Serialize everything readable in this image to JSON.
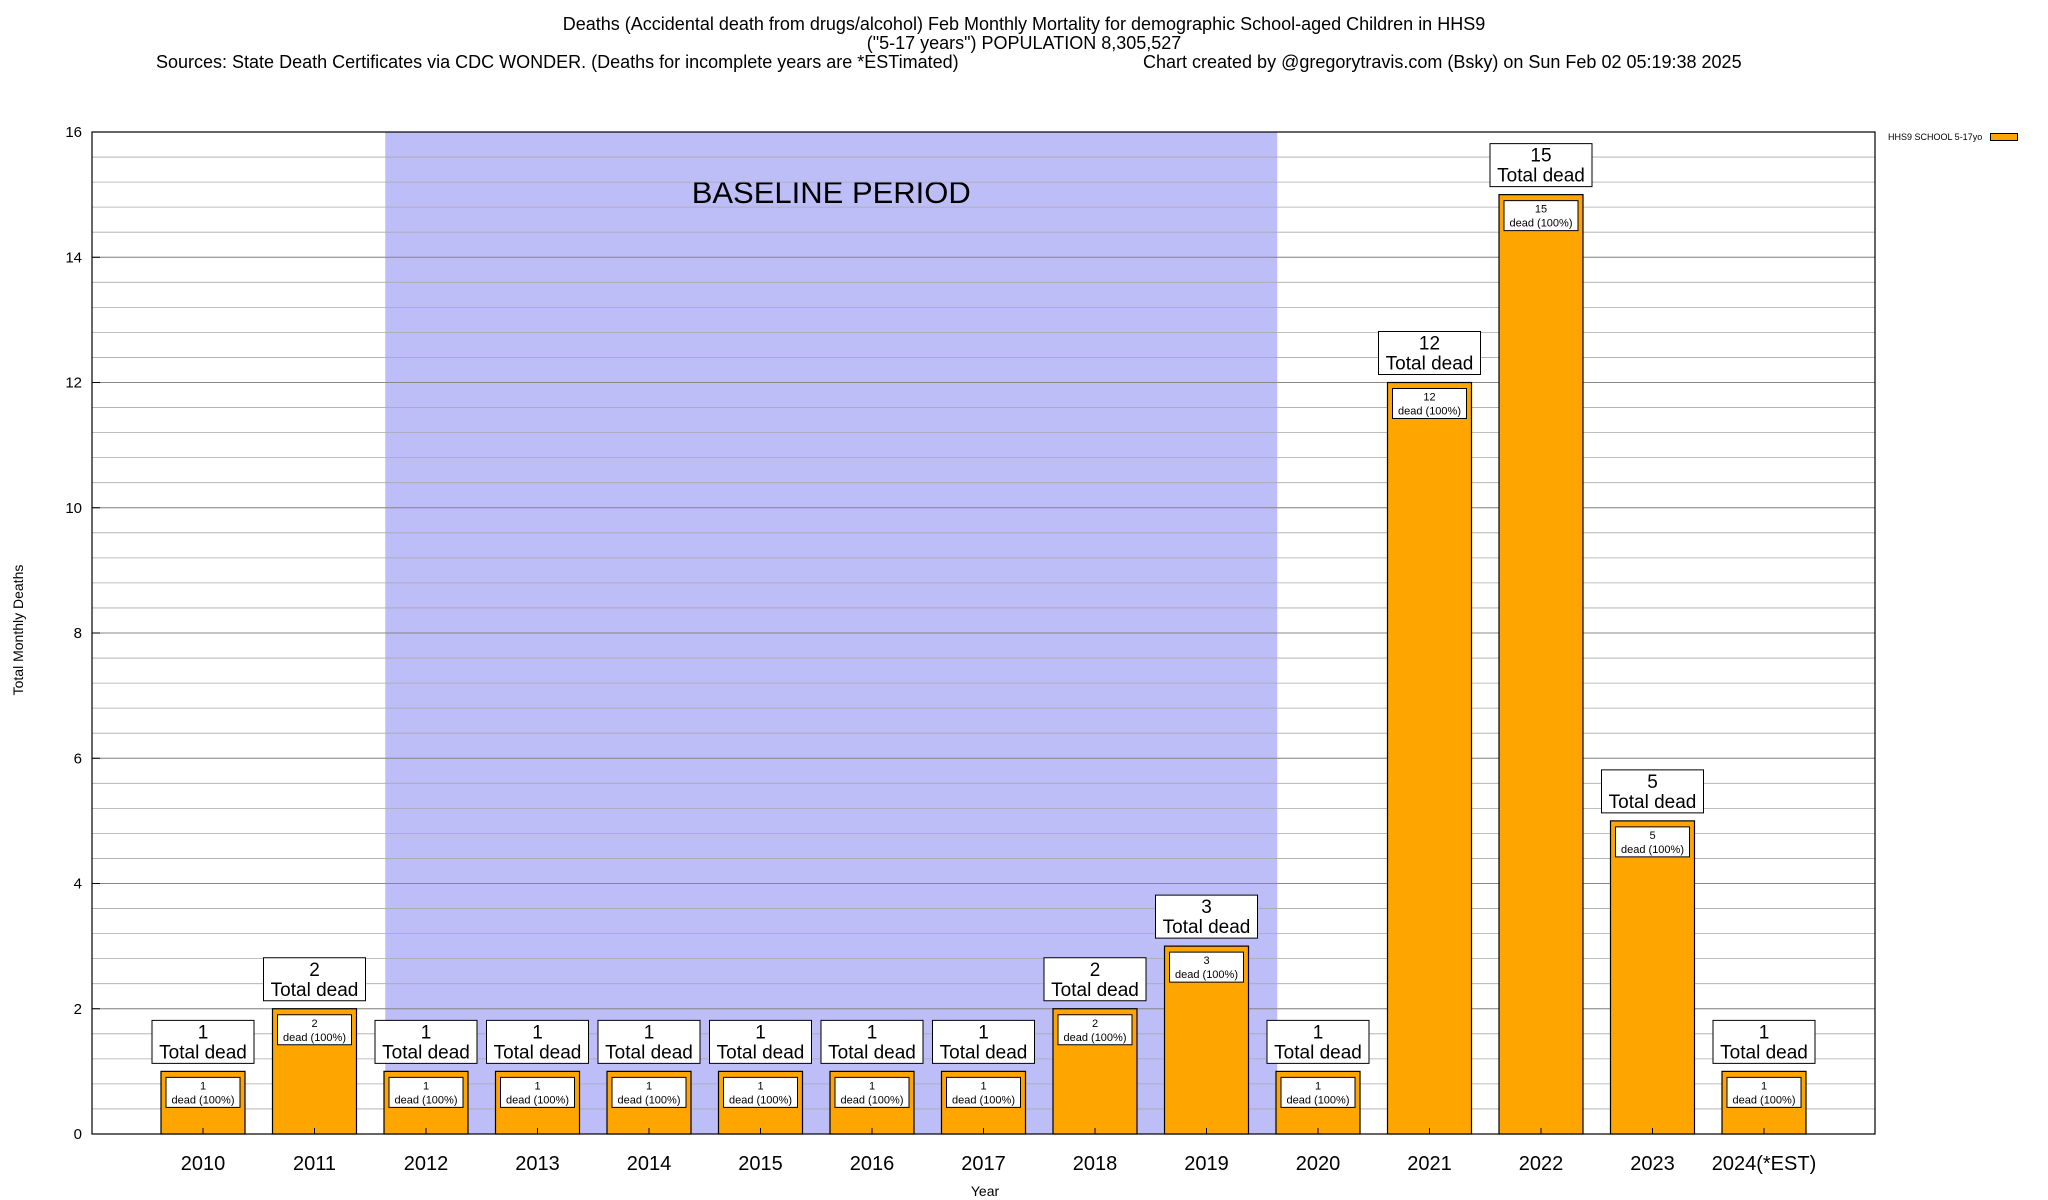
{
  "header": {
    "title_line1": "Deaths (Accidental death from drugs/alcohol) Feb Monthly Mortality for demographic School-aged Children in HHS9",
    "title_line2": "(\"5-17 years\") POPULATION 8,305,527",
    "sources": "Sources: State Death Certificates via CDC WONDER. (Deaths for incomplete years are *ESTimated)",
    "credit": "Chart created by @gregorytravis.com (Bsky) on Sun Feb 02 05:19:38 2025"
  },
  "chart_data": {
    "type": "bar",
    "title": "Deaths (Accidental death from drugs/alcohol) Feb Monthly Mortality for demographic School-aged Children in HHS9",
    "xlabel": "Year",
    "ylabel": "Total Monthly Deaths",
    "ylim": [
      0,
      16
    ],
    "yticks": [
      0,
      2,
      4,
      6,
      8,
      10,
      12,
      14,
      16
    ],
    "grid": true,
    "legend_position": "top-right",
    "categories": [
      "2010",
      "2011",
      "2012",
      "2013",
      "2014",
      "2015",
      "2016",
      "2017",
      "2018",
      "2019",
      "2020",
      "2021",
      "2022",
      "2023",
      "2024(*EST)"
    ],
    "series": [
      {
        "name": "HHS9 SCHOOL 5-17yo",
        "color": "#FFA500",
        "values": [
          1,
          2,
          1,
          1,
          1,
          1,
          1,
          1,
          2,
          3,
          1,
          12,
          15,
          5,
          1
        ]
      }
    ],
    "bar_labels": {
      "total_suffix": "Total dead",
      "inner_suffix": "dead (100%)"
    },
    "annotations": [
      {
        "text": "BASELINE PERIOD",
        "x_from": "2012",
        "x_to": "2019",
        "color": "#BDBDF8"
      }
    ]
  }
}
